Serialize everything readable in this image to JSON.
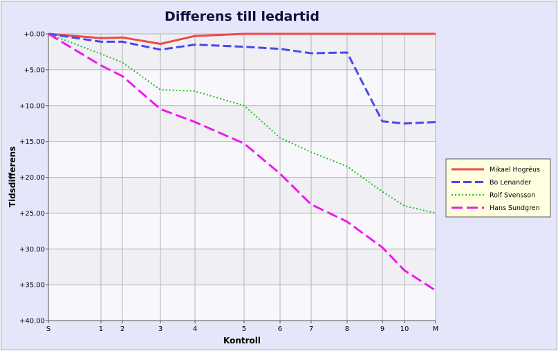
{
  "chart_data": {
    "type": "line",
    "title": "Differens till ledartid",
    "xlabel": "Kontroll",
    "ylabel": "Tidsdifferens",
    "x": [
      "S",
      "1",
      "2",
      "3",
      "4",
      "5",
      "6",
      "7",
      "8",
      "9",
      "10",
      "M"
    ],
    "ylim": [
      0,
      40
    ],
    "y_ticks": [
      "+0.00",
      "+5.00",
      "+10.00",
      "+15.00",
      "+20.00",
      "+25.00",
      "+30.00",
      "+35.00",
      "+40.00"
    ],
    "grid": true,
    "legend_position": "right",
    "series": [
      {
        "name": "Mikael Hogréus",
        "color": "#f04848",
        "dash": "solid",
        "values": [
          0,
          0.6,
          0.5,
          1.4,
          0.3,
          0.0,
          0.0,
          0.0,
          0.0,
          0.0,
          0.0,
          0.0
        ]
      },
      {
        "name": "Bo Lenander",
        "color": "#4848f0",
        "dash": "dash",
        "values": [
          0,
          1.1,
          1.1,
          2.2,
          1.5,
          1.8,
          2.1,
          2.7,
          2.6,
          12.2,
          12.5,
          12.3
        ]
      },
      {
        "name": "Rolf Svensson",
        "color": "#18c018",
        "dash": "dot",
        "values": [
          0,
          2.8,
          4.0,
          7.8,
          8.0,
          10.0,
          14.5,
          16.5,
          18.5,
          22.0,
          24.0,
          25.0
        ]
      },
      {
        "name": "Hans Sundgren",
        "color": "#f018f0",
        "dash": "longdash",
        "values": [
          0,
          4.4,
          5.9,
          10.5,
          12.3,
          15.3,
          19.5,
          23.8,
          26.2,
          29.8,
          33.0,
          35.8
        ]
      }
    ]
  }
}
